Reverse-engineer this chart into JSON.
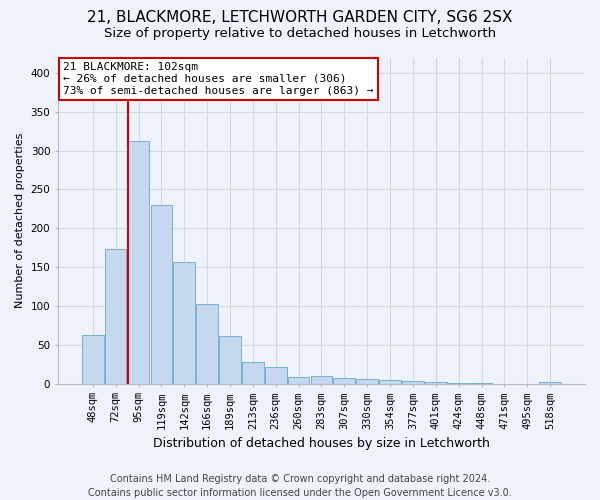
{
  "title1": "21, BLACKMORE, LETCHWORTH GARDEN CITY, SG6 2SX",
  "title2": "Size of property relative to detached houses in Letchworth",
  "xlabel": "Distribution of detached houses by size in Letchworth",
  "ylabel": "Number of detached properties",
  "footer1": "Contains HM Land Registry data © Crown copyright and database right 2024.",
  "footer2": "Contains public sector information licensed under the Open Government Licence v3.0.",
  "bar_labels": [
    "48sqm",
    "72sqm",
    "95sqm",
    "119sqm",
    "142sqm",
    "166sqm",
    "189sqm",
    "213sqm",
    "236sqm",
    "260sqm",
    "283sqm",
    "307sqm",
    "330sqm",
    "354sqm",
    "377sqm",
    "401sqm",
    "424sqm",
    "448sqm",
    "471sqm",
    "495sqm",
    "518sqm"
  ],
  "bar_values": [
    63,
    173,
    313,
    230,
    157,
    102,
    61,
    28,
    21,
    9,
    10,
    7,
    6,
    4,
    3,
    2,
    1,
    1,
    0,
    0,
    2
  ],
  "bar_color": "#c5d8f0",
  "bar_edge_color": "#7aafd4",
  "annotation_text1": "21 BLACKMORE: 102sqm",
  "annotation_text2": "← 26% of detached houses are smaller (306)",
  "annotation_text3": "73% of semi-detached houses are larger (863) →",
  "annotation_box_color": "#ffffff",
  "annotation_border_color": "#cc0000",
  "red_line_color": "#cc0000",
  "red_line_bin": 2,
  "grid_color": "#d0d8e8",
  "background_color": "#eef2fa",
  "ylim": [
    0,
    420
  ],
  "title1_fontsize": 11,
  "title2_fontsize": 9.5,
  "xlabel_fontsize": 9,
  "ylabel_fontsize": 8,
  "tick_fontsize": 7.5,
  "footer_fontsize": 7,
  "ann_fontsize": 8
}
